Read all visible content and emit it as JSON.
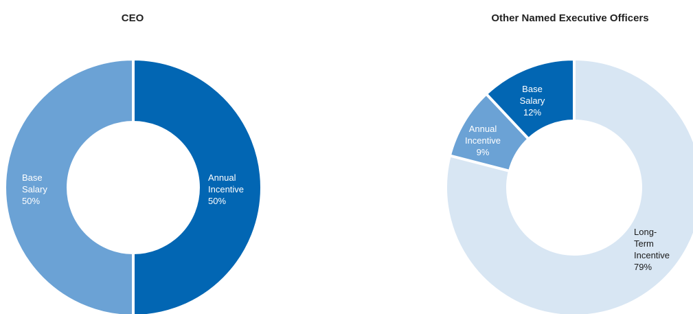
{
  "chart_data": [
    {
      "type": "donut",
      "title": "CEO",
      "colors": [
        "#0266b3",
        "#6ba2d5"
      ],
      "slices": [
        {
          "label_lines": [
            "Base",
            "Salary",
            "50%"
          ],
          "name": "Base Salary",
          "value": 50,
          "color": "#0266b3",
          "text_color": "#ffffff"
        },
        {
          "label_lines": [
            "Annual",
            "Incentive",
            "50%"
          ],
          "name": "Annual Incentive",
          "value": 50,
          "color": "#6ba2d5",
          "text_color": "#ffffff"
        }
      ]
    },
    {
      "type": "donut",
      "title": "Other Named Executive Officers",
      "colors": [
        "#d8e6f3",
        "#6ba2d5",
        "#0266b3"
      ],
      "slices": [
        {
          "label_lines": [
            "Long-",
            "Term",
            "Incentive",
            "79%"
          ],
          "name": "Long-Term Incentive",
          "value": 79,
          "color": "#d8e6f3",
          "text_color": "#1a1a1a"
        },
        {
          "label_lines": [
            "Annual",
            "Incentive",
            "9%"
          ],
          "name": "Annual Incentive",
          "value": 9,
          "color": "#6ba2d5",
          "text_color": "#ffffff"
        },
        {
          "label_lines": [
            "Base",
            "Salary",
            "12%"
          ],
          "name": "Base Salary",
          "value": 12,
          "color": "#0266b3",
          "text_color": "#ffffff"
        }
      ]
    }
  ]
}
